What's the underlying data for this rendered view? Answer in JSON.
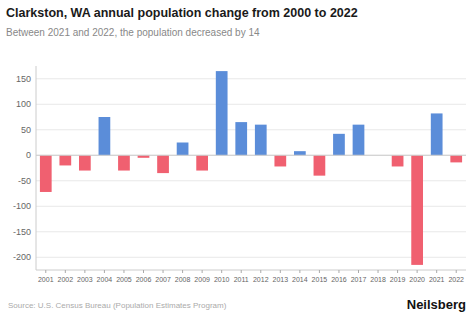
{
  "chart_data": {
    "type": "bar",
    "title": "Clarkston, WA annual population change from 2000 to 2022",
    "subtitle": "Between 2021 and 2022, the population decreased by 14",
    "annotations": [
      "Source: U.S. Census Bureau (Population Estimates Program)",
      "Neilsberg"
    ],
    "categories": [
      "2001",
      "2002",
      "2003",
      "2004",
      "2005",
      "2006",
      "2007",
      "2008",
      "2009",
      "2010",
      "2011",
      "2012",
      "2013",
      "2014",
      "2015",
      "2016",
      "2017",
      "2018",
      "2019",
      "2020",
      "2021",
      "2022"
    ],
    "values": [
      -72,
      -20,
      -30,
      75,
      -30,
      -5,
      -35,
      25,
      -30,
      165,
      65,
      60,
      -22,
      8,
      -40,
      42,
      60,
      0,
      -22,
      -215,
      82,
      -14
    ],
    "colors": [
      "#f06070",
      "#f06070",
      "#f06070",
      "#5b8dd9",
      "#f06070",
      "#f06070",
      "#f06070",
      "#5b8dd9",
      "#f06070",
      "#5b8dd9",
      "#5b8dd9",
      "#5b8dd9",
      "#f06070",
      "#5b8dd9",
      "#f06070",
      "#5b8dd9",
      "#5b8dd9",
      "#5b8dd9",
      "#f06070",
      "#f06070",
      "#5b8dd9",
      "#f06070"
    ],
    "ylim": [
      -225,
      175
    ],
    "yticks": [
      -200,
      -150,
      -100,
      -50,
      0,
      50,
      100,
      150
    ],
    "grid": true
  }
}
